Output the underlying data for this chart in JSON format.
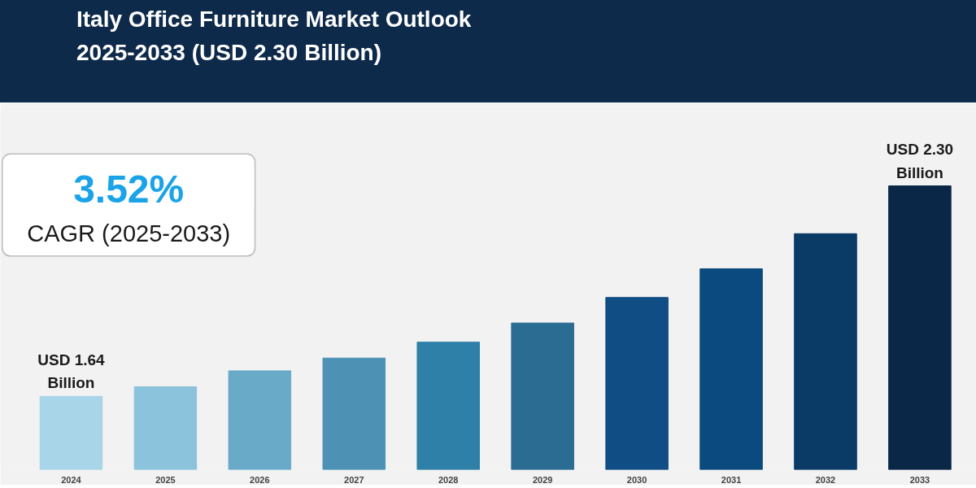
{
  "chart_data": {
    "type": "bar",
    "title": "Italy Office Furniture Market Outlook\n2025-2033 (USD 2.30 Billion)",
    "categories": [
      "2024",
      "2025",
      "2026",
      "2027",
      "2028",
      "2029",
      "2030",
      "2031",
      "2032",
      "2033"
    ],
    "values": [
      1.64,
      1.67,
      1.72,
      1.76,
      1.81,
      1.87,
      1.95,
      2.04,
      2.15,
      2.3
    ],
    "colors": [
      "#a8d5e8",
      "#8cc3dc",
      "#68aac8",
      "#4d92b5",
      "#2f80a8",
      "#2b6c93",
      "#0f4d84",
      "#0b4a7e",
      "#0a3a66",
      "#0a2747"
    ],
    "value_labels": [
      "USD 1.64 Billion",
      null,
      null,
      null,
      null,
      null,
      null,
      null,
      null,
      "USD 2.30 Billion"
    ],
    "annotations": [
      "3.52%",
      "CAGR (2025-2033)"
    ],
    "ylim": [
      1.41,
      2.55
    ],
    "tick_labels": "x",
    "grid": false
  }
}
